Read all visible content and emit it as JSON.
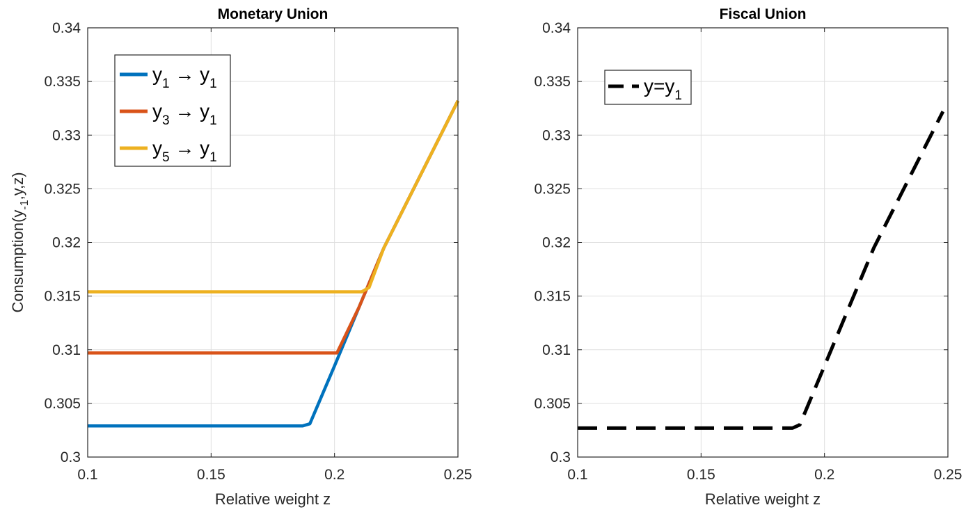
{
  "chart_data": [
    {
      "type": "line",
      "title": "Monetary Union",
      "xlabel": "Relative weight z",
      "ylabel": {
        "main": "Consumption(y",
        "sub": "-1",
        "tail": ",y,z)"
      },
      "xlim": [
        0.1,
        0.25
      ],
      "ylim": [
        0.3,
        0.34
      ],
      "xticks": [
        "0.1",
        "0.15",
        "0.2",
        "0.25"
      ],
      "yticks": [
        "0.3",
        "0.305",
        "0.31",
        "0.315",
        "0.32",
        "0.325",
        "0.33",
        "0.335",
        "0.34"
      ],
      "grid": true,
      "legend_position": "top-left",
      "series": [
        {
          "name": "y1 → y1",
          "label_parts": [
            "y",
            "1",
            " → y",
            "1"
          ],
          "color": "#0072bd",
          "style": "solid",
          "x": [
            0.1,
            0.187,
            0.19,
            0.2,
            0.21,
            0.22,
            0.25
          ],
          "y": [
            0.3029,
            0.3029,
            0.3031,
            0.3085,
            0.314,
            0.3195,
            0.3332
          ]
        },
        {
          "name": "y3 → y1",
          "label_parts": [
            "y",
            "3",
            " → y",
            "1"
          ],
          "color": "#d95319",
          "style": "solid",
          "x": [
            0.1,
            0.201,
            0.21,
            0.22,
            0.25
          ],
          "y": [
            0.3097,
            0.3097,
            0.314,
            0.3195,
            0.3332
          ]
        },
        {
          "name": "y5 → y1",
          "label_parts": [
            "y",
            "5",
            " → y",
            "1"
          ],
          "color": "#edb120",
          "style": "solid",
          "x": [
            0.1,
            0.211,
            0.214,
            0.22,
            0.25
          ],
          "y": [
            0.3154,
            0.3154,
            0.3158,
            0.3195,
            0.3332
          ]
        }
      ]
    },
    {
      "type": "line",
      "title": "Fiscal Union",
      "xlabel": "Relative weight z",
      "ylabel": "",
      "xlim": [
        0.1,
        0.25
      ],
      "ylim": [
        0.3,
        0.34
      ],
      "xticks": [
        "0.1",
        "0.15",
        "0.2",
        "0.25"
      ],
      "yticks": [
        "0.3",
        "0.305",
        "0.31",
        "0.315",
        "0.32",
        "0.325",
        "0.33",
        "0.335",
        "0.34"
      ],
      "grid": true,
      "legend_position": "top-left",
      "series": [
        {
          "name": "y=y1",
          "label_parts": [
            "y=y",
            "1"
          ],
          "color": "#000000",
          "style": "dashed",
          "x": [
            0.1,
            0.187,
            0.19,
            0.2,
            0.21,
            0.22,
            0.248
          ],
          "y": [
            0.3027,
            0.3027,
            0.303,
            0.3085,
            0.314,
            0.3195,
            0.3322
          ]
        }
      ]
    }
  ]
}
